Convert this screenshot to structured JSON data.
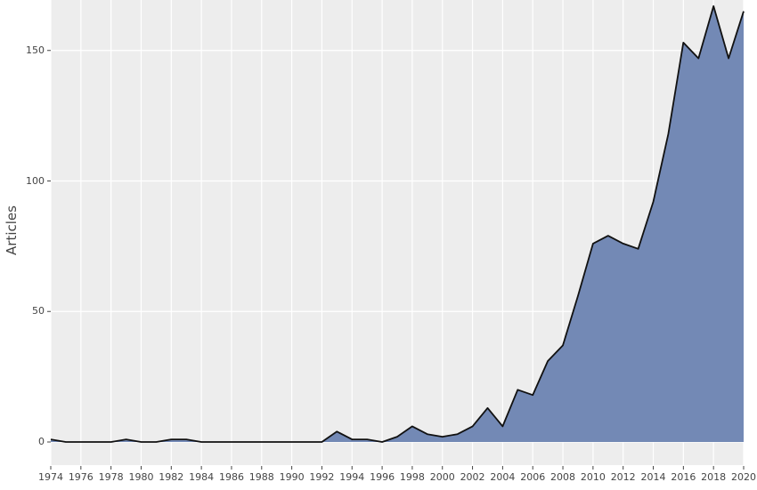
{
  "chart_data": {
    "type": "area",
    "title": "",
    "xlabel": "",
    "ylabel": "Articles",
    "x": [
      1974,
      1975,
      1976,
      1977,
      1978,
      1979,
      1980,
      1981,
      1982,
      1983,
      1984,
      1985,
      1986,
      1987,
      1988,
      1989,
      1990,
      1991,
      1992,
      1993,
      1994,
      1995,
      1996,
      1997,
      1998,
      1999,
      2000,
      2001,
      2002,
      2003,
      2004,
      2005,
      2006,
      2007,
      2008,
      2009,
      2010,
      2011,
      2012,
      2013,
      2014,
      2015,
      2016,
      2017,
      2018,
      2019,
      2020
    ],
    "values": [
      1,
      0,
      0,
      0,
      0,
      1,
      0,
      0,
      1,
      1,
      0,
      0,
      0,
      0,
      0,
      0,
      0,
      0,
      0,
      4,
      1,
      1,
      0,
      2,
      6,
      3,
      2,
      3,
      6,
      13,
      6,
      20,
      18,
      31,
      37,
      56,
      76,
      79,
      76,
      74,
      92,
      118,
      153,
      147,
      167,
      147,
      165
    ],
    "xlim": [
      1974,
      2020
    ],
    "ylim": [
      -9,
      170
    ],
    "x_ticks": [
      "1974",
      "1976",
      "1978",
      "1980",
      "1982",
      "1984",
      "1986",
      "1988",
      "1990",
      "1992",
      "1994",
      "1996",
      "1998",
      "2000",
      "2002",
      "2004",
      "2006",
      "2008",
      "2010",
      "2012",
      "2014",
      "2016",
      "2018",
      "2020"
    ],
    "y_ticks": [
      "0",
      "50",
      "100",
      "150"
    ],
    "grid": true,
    "legend": null,
    "fill_color": "#7389b5",
    "line_color": "#111111",
    "background_color": "#ededed"
  }
}
